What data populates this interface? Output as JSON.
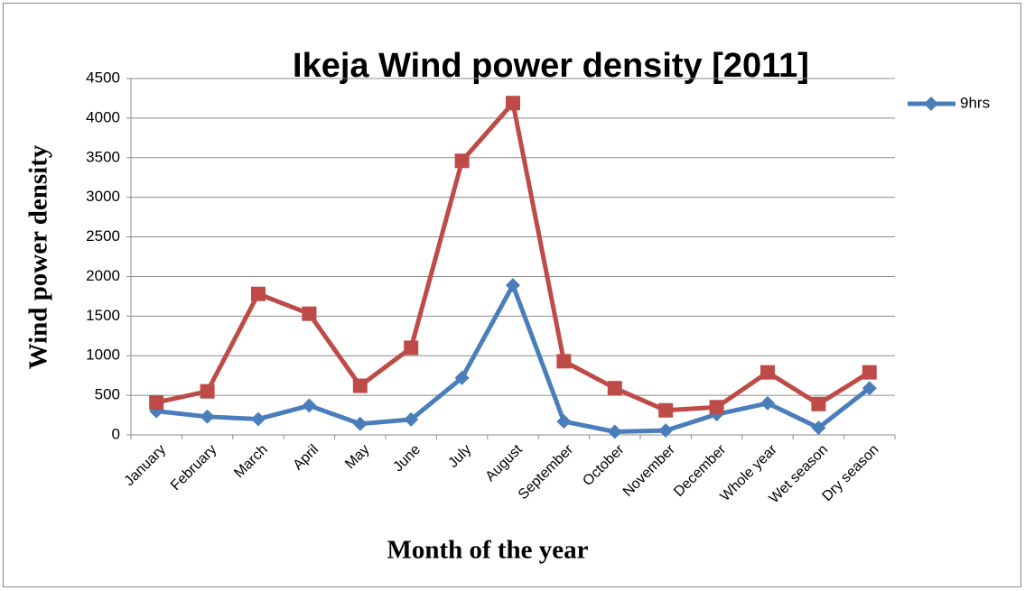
{
  "chart_data": {
    "type": "line",
    "title": "Ikeja Wind power density [2011]",
    "y_label": "Wind power density",
    "x_label": "Month of the year",
    "categories": [
      "January",
      "February",
      "March",
      "April",
      "May",
      "June",
      "July",
      "August",
      "September",
      "October",
      "November",
      "December",
      "Whole  year",
      "Wet season",
      "Dry season"
    ],
    "series": [
      {
        "name": "9hrs",
        "color": "#4a7ebb",
        "marker": "diamond",
        "values": [
          300,
          230,
          200,
          370,
          140,
          195,
          720,
          1890,
          170,
          40,
          55,
          260,
          400,
          90,
          590
        ]
      },
      {
        "color": "#be4b48",
        "marker": "square",
        "values": [
          410,
          550,
          1780,
          1530,
          620,
          1100,
          3460,
          4190,
          930,
          590,
          310,
          350,
          790,
          390,
          790
        ]
      }
    ],
    "ylim": [
      0,
      4500
    ],
    "yticks": [
      0,
      500,
      1000,
      1500,
      2000,
      2500,
      3000,
      3500,
      4000,
      4500
    ],
    "grid": true,
    "legend": "right"
  }
}
